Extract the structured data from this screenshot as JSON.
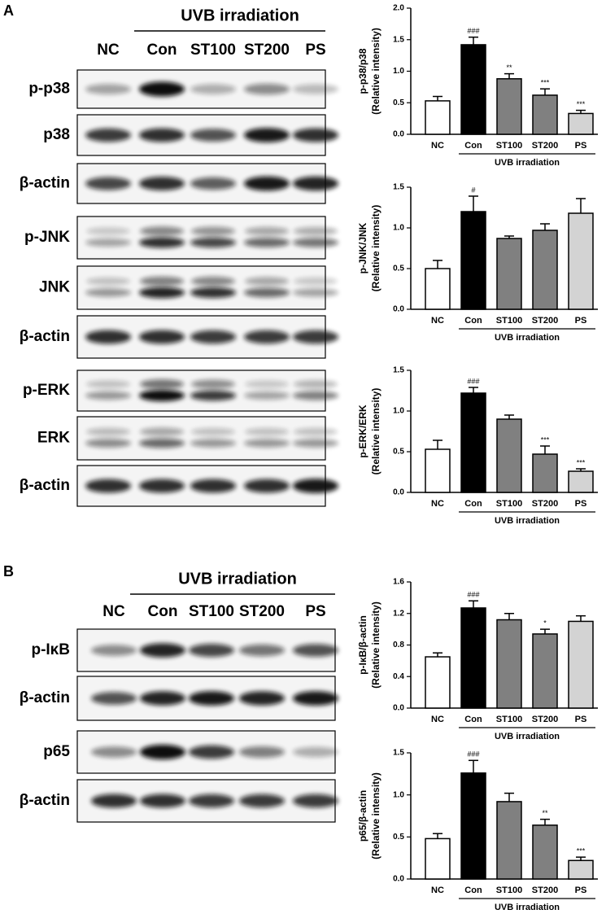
{
  "blots": [
    {
      "panel": "A",
      "header": "UVB irradiation",
      "lanes": [
        "NC",
        "Con",
        "ST100",
        "ST200",
        "PS"
      ],
      "rows": [
        "p-p38",
        "p38",
        "β-actin",
        "p-JNK",
        "JNK",
        "β-actin",
        "p-ERK",
        "ERK",
        "β-actin"
      ]
    },
    {
      "panel": "B",
      "header": "UVB irradiation",
      "lanes": [
        "NC",
        "Con",
        "ST100",
        "ST200",
        "PS"
      ],
      "rows": [
        "p-IκB",
        "β-actin",
        "p65",
        "β-actin"
      ]
    }
  ],
  "chart_data": [
    {
      "type": "bar",
      "ylabel": [
        "p-p38/p38",
        "(Relative intensity)"
      ],
      "xlabel": "UVB irradiation",
      "categories": [
        "NC",
        "Con",
        "ST100",
        "ST200",
        "PS"
      ],
      "values": [
        0.53,
        1.42,
        0.88,
        0.62,
        0.33
      ],
      "errors": [
        0.07,
        0.12,
        0.08,
        0.1,
        0.05
      ],
      "annotations": [
        null,
        "###",
        "**",
        "***",
        "***"
      ],
      "colors": [
        "#ffffff",
        "#000000",
        "#808080",
        "#808080",
        "#d3d3d3"
      ],
      "ylim": [
        0,
        2
      ],
      "yticks": [
        {
          "value": 0,
          "label": "0.0"
        },
        0.5,
        {
          "value": 1,
          "label": "1.0"
        },
        1.5,
        {
          "value": 2,
          "label": "2.0"
        }
      ]
    },
    {
      "type": "bar",
      "ylabel": [
        "p-JNK/JNK",
        "(Relative intensity)"
      ],
      "xlabel": "UVB irradiation",
      "categories": [
        "NC",
        "Con",
        "ST100",
        "ST200",
        "PS"
      ],
      "values": [
        0.5,
        1.2,
        0.87,
        0.97,
        1.18
      ],
      "errors": [
        0.1,
        0.19,
        0.03,
        0.08,
        0.18
      ],
      "annotations": [
        null,
        "#",
        null,
        null,
        null
      ],
      "colors": [
        "#ffffff",
        "#000000",
        "#808080",
        "#808080",
        "#d3d3d3"
      ],
      "ylim": [
        0,
        1.5
      ],
      "yticks": [
        {
          "value": 0,
          "label": "0.0"
        },
        0.5,
        {
          "value": 1,
          "label": "1.0"
        },
        1.5
      ]
    },
    {
      "type": "bar",
      "ylabel": [
        "p-ERK/ERK",
        "(Relative intensity)"
      ],
      "xlabel": "UVB irradiation",
      "categories": [
        "NC",
        "Con",
        "ST100",
        "ST200",
        "PS"
      ],
      "values": [
        0.53,
        1.22,
        0.9,
        0.47,
        0.26
      ],
      "errors": [
        0.11,
        0.07,
        0.05,
        0.1,
        0.03
      ],
      "annotations": [
        null,
        "###",
        null,
        "***",
        "***"
      ],
      "colors": [
        "#ffffff",
        "#000000",
        "#808080",
        "#808080",
        "#d3d3d3"
      ],
      "ylim": [
        0,
        1.5
      ],
      "yticks": [
        {
          "value": 0,
          "label": "0.0"
        },
        0.5,
        {
          "value": 1,
          "label": "1.0"
        },
        1.5
      ]
    },
    {
      "type": "bar",
      "ylabel": [
        "p-IκB/β-actin",
        "(Relative intensity)"
      ],
      "xlabel": "UVB irradiation",
      "categories": [
        "NC",
        "Con",
        "ST100",
        "ST200",
        "PS"
      ],
      "values": [
        0.65,
        1.27,
        1.12,
        0.94,
        1.1
      ],
      "errors": [
        0.05,
        0.09,
        0.08,
        0.06,
        0.07
      ],
      "annotations": [
        null,
        "###",
        null,
        "*",
        null
      ],
      "colors": [
        "#ffffff",
        "#000000",
        "#808080",
        "#808080",
        "#d3d3d3"
      ],
      "ylim": [
        0,
        1.6
      ],
      "yticks": [
        {
          "value": 0,
          "label": "0.0"
        },
        0.4,
        0.8,
        1.2,
        1.6
      ]
    },
    {
      "type": "bar",
      "ylabel": [
        "p65/β-actin",
        "(Relative intensity)"
      ],
      "xlabel": "UVB irradiation",
      "categories": [
        "NC",
        "Con",
        "ST100",
        "ST200",
        "PS"
      ],
      "values": [
        0.48,
        1.26,
        0.92,
        0.64,
        0.22
      ],
      "errors": [
        0.06,
        0.15,
        0.1,
        0.07,
        0.04
      ],
      "annotations": [
        null,
        "###",
        null,
        "**",
        "***"
      ],
      "colors": [
        "#ffffff",
        "#000000",
        "#808080",
        "#808080",
        "#d3d3d3"
      ],
      "ylim": [
        0,
        1.5
      ],
      "yticks": [
        {
          "value": 0,
          "label": "0.0"
        },
        0.5,
        {
          "value": 1,
          "label": "1.0"
        },
        1.5
      ]
    }
  ]
}
